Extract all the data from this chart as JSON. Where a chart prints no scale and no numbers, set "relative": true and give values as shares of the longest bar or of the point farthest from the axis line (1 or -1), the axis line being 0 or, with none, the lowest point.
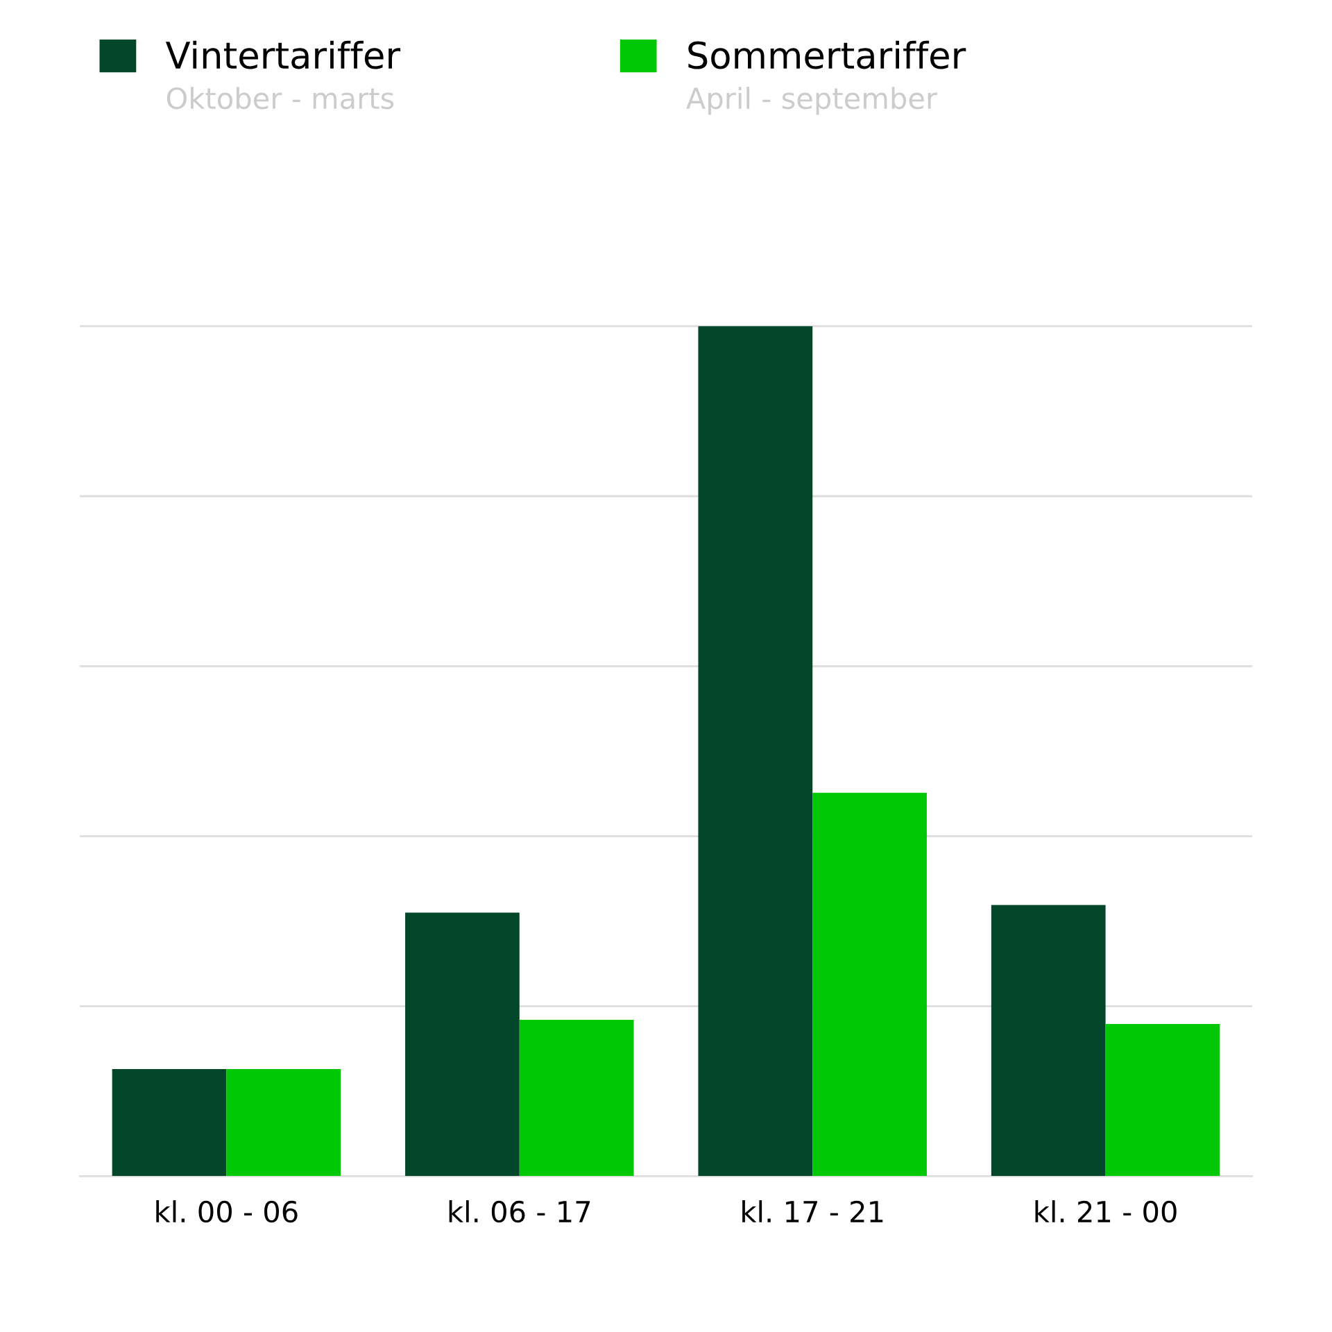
{
  "chart_data": {
    "type": "bar",
    "relative": true,
    "categories": [
      "kl. 00 - 06",
      "kl. 06 - 17",
      "kl. 17 - 21",
      "kl. 21 - 00"
    ],
    "series": [
      {
        "name": "Vintertariffer",
        "color": "#03472a",
        "values": [
          0.126,
          0.31,
          1,
          0.319
        ]
      },
      {
        "name": "Sommertariffer",
        "color": "#00c805",
        "values": [
          0.126,
          0.184,
          0.451,
          0.179
        ]
      }
    ],
    "annotations": [
      "Oktober - marts",
      "April - september"
    ],
    "grid": "y",
    "legend": "top left"
  }
}
